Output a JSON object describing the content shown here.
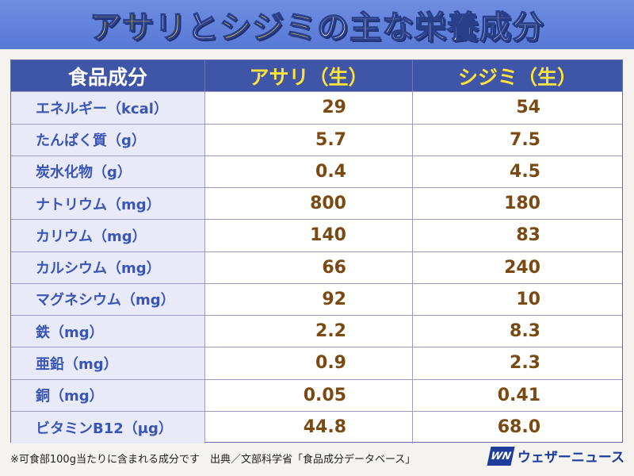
{
  "header": {
    "title_part1": "アサリ",
    "title_part2": "と",
    "title_part3": "シジミ",
    "title_part4": "の主な栄養成分"
  },
  "table": {
    "columns": [
      "食品成分",
      "アサリ（生）",
      "シジミ（生）"
    ],
    "rows": [
      {
        "label": "エネルギー（kcal）",
        "asari": "29",
        "shijimi": "54"
      },
      {
        "label": "たんぱく質（g）",
        "asari": "5.7",
        "shijimi": "7.5"
      },
      {
        "label": "炭水化物（g）",
        "asari": "0.4",
        "shijimi": "4.5"
      },
      {
        "label": "ナトリウム（mg）",
        "asari": "800",
        "shijimi": "180"
      },
      {
        "label": "カリウム（mg）",
        "asari": "140",
        "shijimi": "83"
      },
      {
        "label": "カルシウム（mg）",
        "asari": "66",
        "shijimi": "240"
      },
      {
        "label": "マグネシウム（mg）",
        "asari": "92",
        "shijimi": "10"
      },
      {
        "label": "鉄（mg）",
        "asari": "2.2",
        "shijimi": "8.3"
      },
      {
        "label": "亜鉛（mg）",
        "asari": "0.9",
        "shijimi": "2.3"
      },
      {
        "label": "銅（mg）",
        "asari": "0.05",
        "shijimi": "0.41"
      },
      {
        "label": "ビタミンB12（μg）",
        "asari": "44.8",
        "shijimi": "68.0"
      }
    ]
  },
  "footer": {
    "note": "※可食部100g当たりに含まれる成分です　出典／文部科学省「食品成分データベース」",
    "logo_mark": "WN",
    "logo_text": "ウェザーニュース"
  },
  "colors": {
    "banner": "#5878d6",
    "header_row": "#3f55a8",
    "accent_yellow": "#ffe23a",
    "label_blue": "#3a55b8",
    "value_brown": "#7a4a12"
  }
}
